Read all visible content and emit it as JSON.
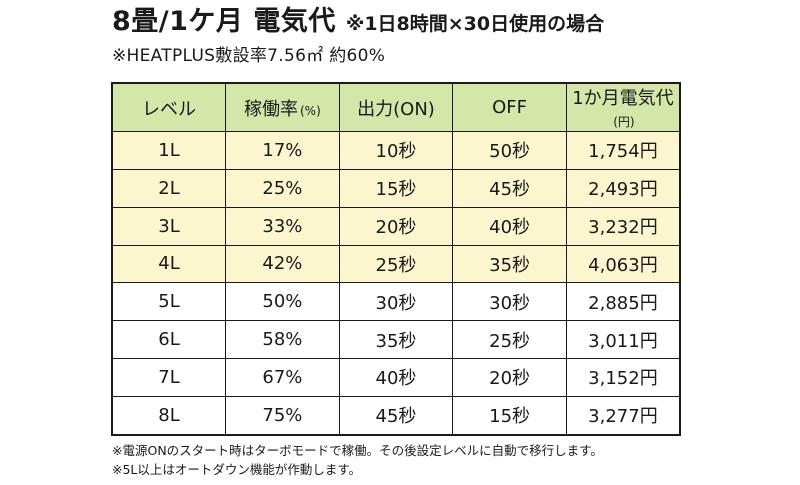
{
  "title": {
    "main": "8畳/1ケ月 電気代",
    "sub": "※1日8時間×30日使用の場合"
  },
  "subtitle": "※HEATPLUS敷設率7.56㎡ 約60%",
  "table": {
    "headers": [
      {
        "label": "レベル",
        "unit": ""
      },
      {
        "label": "稼働率",
        "unit": "(%)"
      },
      {
        "label": "出力(ON)",
        "unit": ""
      },
      {
        "label": "OFF",
        "unit": ""
      },
      {
        "label": "1か月電気代",
        "unit": "(円)"
      }
    ],
    "rows": [
      {
        "level": "1L",
        "rate": "17%",
        "on": "10秒",
        "off": "50秒",
        "cost": "1,754円",
        "highlight": true
      },
      {
        "level": "2L",
        "rate": "25%",
        "on": "15秒",
        "off": "45秒",
        "cost": "2,493円",
        "highlight": true
      },
      {
        "level": "3L",
        "rate": "33%",
        "on": "20秒",
        "off": "40秒",
        "cost": "3,232円",
        "highlight": true
      },
      {
        "level": "4L",
        "rate": "42%",
        "on": "25秒",
        "off": "35秒",
        "cost": "4,063円",
        "highlight": true
      },
      {
        "level": "5L",
        "rate": "50%",
        "on": "30秒",
        "off": "30秒",
        "cost": "2,885円",
        "highlight": false
      },
      {
        "level": "6L",
        "rate": "58%",
        "on": "35秒",
        "off": "25秒",
        "cost": "3,011円",
        "highlight": false
      },
      {
        "level": "7L",
        "rate": "67%",
        "on": "40秒",
        "off": "20秒",
        "cost": "3,152円",
        "highlight": false
      },
      {
        "level": "8L",
        "rate": "75%",
        "on": "45秒",
        "off": "15秒",
        "cost": "3,277円",
        "highlight": false
      }
    ]
  },
  "notes": [
    "※電源ONのスタート時はターボモードで稼働。その後設定レベルに自動で移行します。",
    "※5L以上はオートダウン機能が作動します。"
  ],
  "colors": {
    "header_bg": "#d4e6a8",
    "highlight_row_bg": "#fcf6cf",
    "border": "#1a1a1a"
  }
}
